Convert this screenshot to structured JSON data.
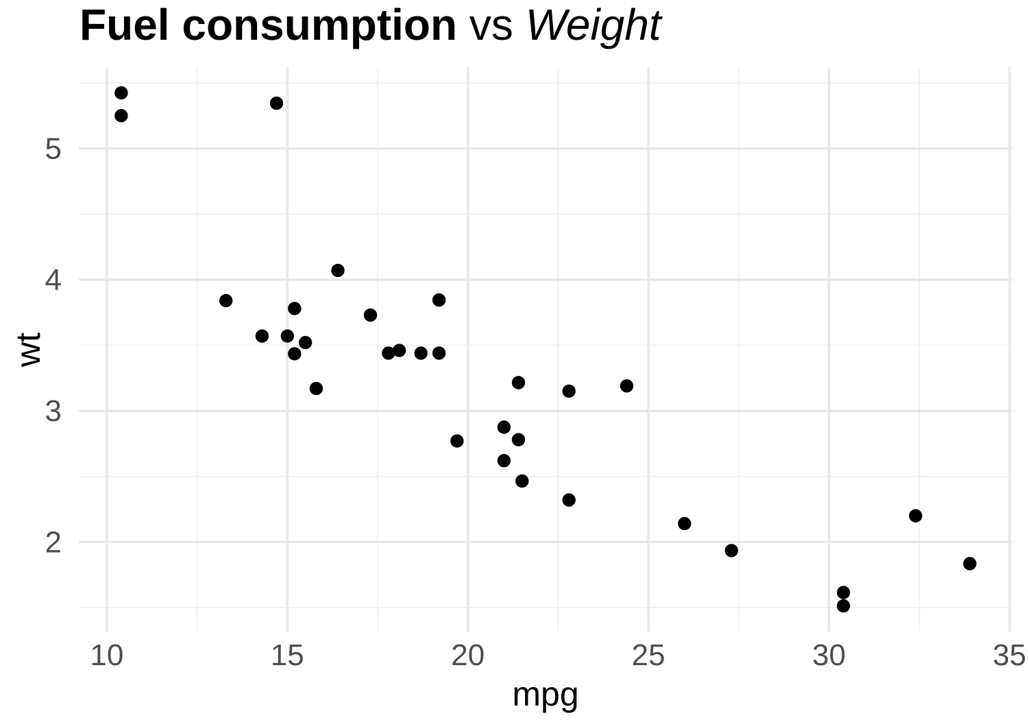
{
  "title": {
    "bold_part": "Fuel consumption",
    "plain_part": " vs ",
    "italic_part": "Weight"
  },
  "chart_data": {
    "type": "scatter",
    "title": "Fuel consumption vs Weight",
    "xlabel": "mpg",
    "ylabel": "wt",
    "xlim": [
      9.2246,
      35.0754
    ],
    "ylim": [
      1.3174,
      5.6196
    ],
    "x_ticks": [
      10,
      15,
      20,
      25,
      30,
      35
    ],
    "y_ticks": [
      2,
      3,
      4,
      5
    ],
    "x_minor_gridlines": [
      12.5,
      17.5,
      22.5,
      27.5,
      32.5
    ],
    "y_minor_gridlines": [
      1.5,
      2.5,
      3.5,
      4.5,
      5.5
    ],
    "grid": true,
    "legend_position": "none",
    "point_color": "#000000",
    "background_color": "#ffffff",
    "major_grid_color": "#e9e9e9",
    "minor_grid_color": "#f0f0f0",
    "axis_text_color": "#4d4d4d",
    "x": [
      21.0,
      21.0,
      22.8,
      21.4,
      18.7,
      18.1,
      14.3,
      24.4,
      22.8,
      19.2,
      17.8,
      16.4,
      17.3,
      15.2,
      10.4,
      10.4,
      14.7,
      32.4,
      30.4,
      33.9,
      21.5,
      15.5,
      15.2,
      13.3,
      19.2,
      27.3,
      26.0,
      30.4,
      15.8,
      19.7,
      15.0,
      21.4
    ],
    "y": [
      2.62,
      2.875,
      2.32,
      3.215,
      3.44,
      3.46,
      3.57,
      3.19,
      3.15,
      3.44,
      3.44,
      4.07,
      3.73,
      3.78,
      5.25,
      5.424,
      5.345,
      2.2,
      1.615,
      1.835,
      2.465,
      3.52,
      3.435,
      3.84,
      3.845,
      1.935,
      2.14,
      1.513,
      3.17,
      2.77,
      3.57,
      2.78
    ]
  }
}
